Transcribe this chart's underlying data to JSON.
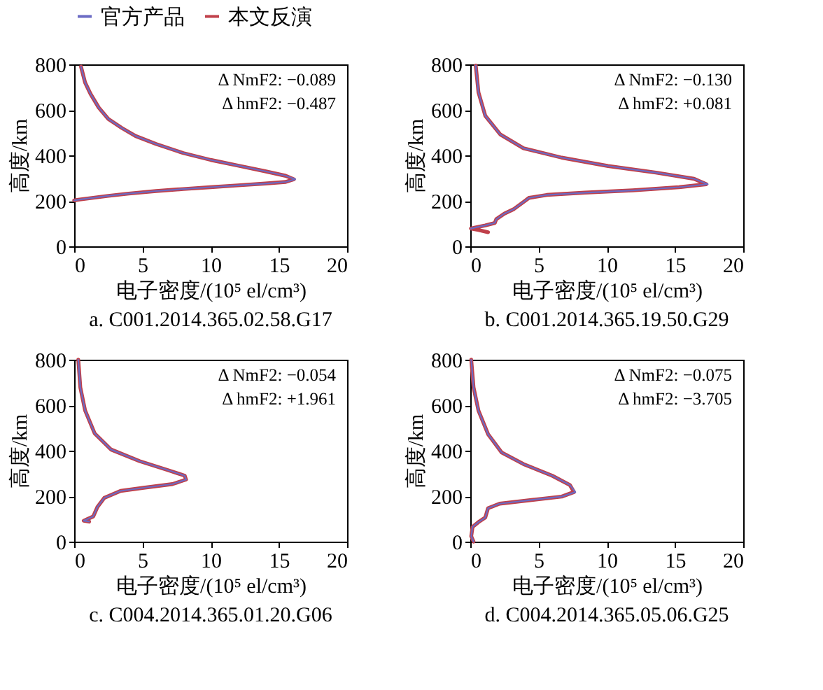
{
  "chart_data": [
    {
      "type": "line",
      "title": "a. C001.2014.365.02.58.G17",
      "xlabel": "电子密度/(10⁵ el/cm³)",
      "ylabel": "高度/km",
      "xlim": [
        0,
        20
      ],
      "xticks": [
        0,
        5,
        10,
        15,
        20
      ],
      "ylim": [
        0,
        800
      ],
      "yticks": [
        0,
        200,
        400,
        600,
        800
      ],
      "grid": false,
      "legend": "top",
      "annotations": [
        "Δ NmF2: −0.089",
        "Δ hmF2: −0.487"
      ],
      "series": [
        {
          "name": "官方产品",
          "color": "#6b6bc4",
          "x": [
            0.5,
            0.8,
            1.2,
            1.8,
            2.5,
            3.5,
            4.5,
            6,
            8,
            10,
            12,
            14,
            15.5,
            16.2,
            15.5,
            14,
            12,
            10,
            8,
            6,
            4,
            2.5,
            1.2,
            0.3,
            0
          ],
          "values": [
            790,
            720,
            670,
            610,
            560,
            520,
            485,
            450,
            410,
            380,
            355,
            330,
            310,
            295,
            283,
            276,
            268,
            260,
            252,
            243,
            232,
            222,
            212,
            205,
            202
          ]
        },
        {
          "name": "本文反演",
          "color": "#c0404a",
          "x": [
            0.5,
            0.8,
            1.2,
            1.8,
            2.5,
            3.5,
            4.5,
            6,
            8,
            10,
            12,
            14,
            15.5,
            16.1,
            15.5,
            14,
            12,
            10,
            8,
            6,
            4,
            2.5,
            1.2,
            0.3,
            0
          ],
          "values": [
            790,
            720,
            670,
            610,
            560,
            520,
            485,
            450,
            410,
            380,
            355,
            330,
            310,
            295,
            283,
            276,
            268,
            260,
            252,
            243,
            232,
            222,
            212,
            205,
            202
          ]
        }
      ]
    },
    {
      "type": "line",
      "title": "b. C001.2014.365.19.50.G29",
      "xlabel": "电子密度/(10⁵ el/cm³)",
      "ylabel": "高度/km",
      "xlim": [
        0,
        20
      ],
      "xticks": [
        0,
        5,
        10,
        15,
        20
      ],
      "ylim": [
        0,
        800
      ],
      "yticks": [
        0,
        200,
        400,
        600,
        800
      ],
      "grid": false,
      "legend": "top",
      "annotations": [
        "Δ NmF2: −0.130",
        "Δ hmF2: +0.081"
      ],
      "series": [
        {
          "name": "官方产品",
          "color": "#6b6bc4",
          "x": [
            0.4,
            0.6,
            1.1,
            2.2,
            3.9,
            6.7,
            10.1,
            13.6,
            16.4,
            17.4,
            15.3,
            11.9,
            8.4,
            5.6,
            4.3,
            3.9,
            3.2,
            2.5,
            1.9,
            1.8,
            1.1,
            0.3,
            0.05
          ],
          "values": [
            795,
            677,
            574,
            492,
            431,
            390,
            353,
            324,
            297,
            273,
            260,
            246,
            236,
            226,
            213,
            195,
            164,
            144,
            119,
            103,
            92,
            82,
            78
          ]
        },
        {
          "name": "本文反演",
          "color": "#c0404a",
          "x": [
            0.4,
            0.6,
            1.1,
            2.2,
            3.9,
            6.7,
            10.1,
            13.6,
            16.4,
            17.3,
            15.3,
            11.9,
            8.4,
            5.6,
            4.3,
            3.9,
            3.2,
            2.5,
            1.9,
            1.8,
            1.1,
            0.3,
            0.05,
            0.6,
            1.3
          ],
          "values": [
            795,
            677,
            574,
            492,
            431,
            390,
            353,
            324,
            297,
            273,
            260,
            246,
            236,
            226,
            213,
            195,
            164,
            144,
            119,
            103,
            92,
            82,
            78,
            72,
            62
          ]
        }
      ]
    },
    {
      "type": "line",
      "title": "c. C004.2014.365.01.20.G06",
      "xlabel": "电子密度/(10⁵ el/cm³)",
      "ylabel": "高度/km",
      "xlim": [
        0,
        20
      ],
      "xticks": [
        0,
        5,
        10,
        15,
        20
      ],
      "ylim": [
        0,
        800
      ],
      "yticks": [
        0,
        200,
        400,
        600,
        800
      ],
      "grid": false,
      "legend": "top",
      "annotations": [
        "Δ NmF2: −0.054",
        "Δ hmF2: +1.961"
      ],
      "series": [
        {
          "name": "官方产品",
          "color": "#6b6bc4",
          "x": [
            0.3,
            0.45,
            0.8,
            1.5,
            2.7,
            4.8,
            6.9,
            8.1,
            8.2,
            7.2,
            5.1,
            3.4,
            2.2,
            1.7,
            1.4,
            1.0,
            0.7,
            1.1
          ],
          "values": [
            800,
            678,
            577,
            476,
            405,
            354,
            314,
            290,
            273,
            253,
            237,
            223,
            192,
            152,
            111,
            100,
            92,
            88
          ]
        },
        {
          "name": "本文反演",
          "color": "#c0404a",
          "x": [
            0.3,
            0.45,
            0.8,
            1.5,
            2.7,
            4.8,
            6.9,
            8.1,
            8.2,
            7.2,
            5.1,
            3.4,
            2.2,
            1.7,
            1.4,
            1.0,
            0.7,
            1.1
          ],
          "values": [
            800,
            678,
            577,
            476,
            405,
            354,
            314,
            290,
            273,
            253,
            237,
            223,
            192,
            152,
            111,
            100,
            92,
            88
          ]
        }
      ]
    },
    {
      "type": "line",
      "title": "d. C004.2014.365.05.06.G25",
      "xlabel": "电子密度/(10⁵ el/cm³)",
      "ylabel": "高度/km",
      "xlim": [
        0,
        20
      ],
      "xticks": [
        0,
        5,
        10,
        15,
        20
      ],
      "ylim": [
        0,
        800
      ],
      "yticks": [
        0,
        200,
        400,
        600,
        800
      ],
      "grid": false,
      "legend": "top",
      "annotations": [
        "Δ NmF2: −0.075",
        "Δ hmF2: −3.705"
      ],
      "series": [
        {
          "name": "官方产品",
          "color": "#6b6bc4",
          "x": [
            0.07,
            0.24,
            0.6,
            1.3,
            2.3,
            3.9,
            6.0,
            7.3,
            7.7,
            6.7,
            4.6,
            2.15,
            1.3,
            1.1,
            0.6,
            0.17,
            0.07,
            0.24
          ],
          "values": [
            800,
            678,
            576,
            473,
            392,
            341,
            290,
            249,
            218,
            198,
            184,
            167,
            147,
            106,
            86,
            65,
            24,
            0
          ]
        },
        {
          "name": "本文反演",
          "color": "#c0404a",
          "x": [
            0.07,
            0.24,
            0.6,
            1.3,
            2.3,
            3.9,
            6.0,
            7.3,
            7.6,
            6.7,
            4.6,
            2.15,
            1.3,
            1.1,
            0.6,
            0.17,
            0.07,
            0.24
          ],
          "values": [
            800,
            678,
            576,
            473,
            392,
            341,
            290,
            249,
            218,
            198,
            184,
            167,
            147,
            106,
            86,
            65,
            24,
            0
          ]
        }
      ]
    }
  ]
}
